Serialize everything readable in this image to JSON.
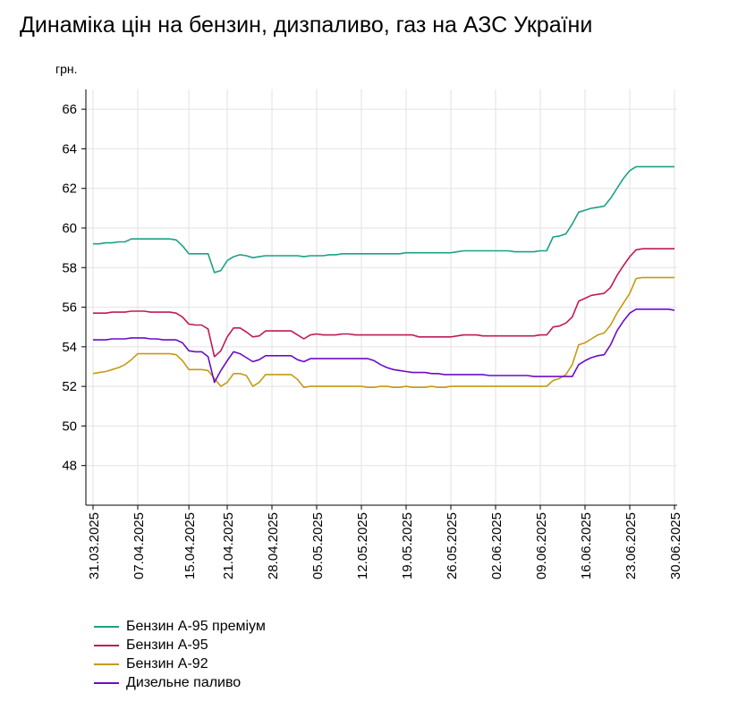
{
  "chart_data": {
    "type": "line",
    "title": "Динаміка цін на бензин, дизпаливо, газ на АЗС України",
    "ylabel": "грн.",
    "ylim": [
      46,
      67
    ],
    "yticks": [
      48,
      50,
      52,
      54,
      56,
      58,
      60,
      62,
      64,
      66
    ],
    "grid": true,
    "legend_position": "bottom-left",
    "x_tick_labels": [
      "31.03.2025",
      "07.04.2025",
      "15.04.2025",
      "21.04.2025",
      "28.04.2025",
      "05.05.2025",
      "12.05.2025",
      "19.05.2025",
      "26.05.2025",
      "02.06.2025",
      "09.06.2025",
      "16.06.2025",
      "23.06.2025",
      "30.06.2025"
    ],
    "x": [
      "31.03",
      "01.04",
      "02.04",
      "03.04",
      "04.04",
      "05.04",
      "06.04",
      "07.04",
      "08.04",
      "09.04",
      "10.04",
      "11.04",
      "12.04",
      "13.04",
      "14.04",
      "15.04",
      "16.04",
      "17.04",
      "18.04",
      "19.04",
      "20.04",
      "21.04",
      "22.04",
      "23.04",
      "24.04",
      "25.04",
      "26.04",
      "27.04",
      "28.04",
      "29.04",
      "30.04",
      "01.05",
      "02.05",
      "03.05",
      "04.05",
      "05.05",
      "06.05",
      "07.05",
      "08.05",
      "09.05",
      "10.05",
      "11.05",
      "12.05",
      "13.05",
      "14.05",
      "15.05",
      "16.05",
      "17.05",
      "18.05",
      "19.05",
      "20.05",
      "21.05",
      "22.05",
      "23.05",
      "24.05",
      "25.05",
      "26.05",
      "27.05",
      "28.05",
      "29.05",
      "30.05",
      "31.05",
      "01.06",
      "02.06",
      "03.06",
      "04.06",
      "05.06",
      "06.06",
      "07.06",
      "08.06",
      "09.06",
      "10.06",
      "11.06",
      "12.06",
      "13.06",
      "14.06",
      "15.06",
      "16.06",
      "17.06",
      "18.06",
      "19.06",
      "20.06",
      "21.06",
      "22.06",
      "23.06",
      "24.06",
      "25.06",
      "26.06",
      "27.06",
      "28.06",
      "29.06",
      "30.06"
    ],
    "series": [
      {
        "name": "Бензин А-95 преміум",
        "color": "#1aa187",
        "values": [
          59.2,
          59.2,
          59.25,
          59.25,
          59.3,
          59.3,
          59.45,
          59.45,
          59.45,
          59.45,
          59.45,
          59.45,
          59.45,
          59.4,
          59.1,
          58.7,
          58.7,
          58.7,
          58.7,
          57.75,
          57.85,
          58.35,
          58.55,
          58.65,
          58.6,
          58.5,
          58.55,
          58.6,
          58.6,
          58.6,
          58.6,
          58.6,
          58.6,
          58.55,
          58.6,
          58.6,
          58.6,
          58.65,
          58.65,
          58.7,
          58.7,
          58.7,
          58.7,
          58.7,
          58.7,
          58.7,
          58.7,
          58.7,
          58.7,
          58.75,
          58.75,
          58.75,
          58.75,
          58.75,
          58.75,
          58.75,
          58.75,
          58.8,
          58.85,
          58.85,
          58.85,
          58.85,
          58.85,
          58.85,
          58.85,
          58.85,
          58.8,
          58.8,
          58.8,
          58.8,
          58.85,
          58.85,
          59.55,
          59.6,
          59.7,
          60.2,
          60.8,
          60.9,
          61.0,
          61.05,
          61.1,
          61.5,
          62.0,
          62.5,
          62.9,
          63.1,
          63.1,
          63.1,
          63.1,
          63.1,
          63.1,
          63.1
        ]
      },
      {
        "name": "Бензин А-95",
        "color": "#c0195a",
        "values": [
          55.7,
          55.7,
          55.7,
          55.75,
          55.75,
          55.75,
          55.8,
          55.8,
          55.8,
          55.75,
          55.75,
          55.75,
          55.75,
          55.7,
          55.5,
          55.15,
          55.1,
          55.1,
          54.9,
          53.5,
          53.8,
          54.5,
          54.95,
          54.95,
          54.75,
          54.5,
          54.55,
          54.8,
          54.8,
          54.8,
          54.8,
          54.8,
          54.6,
          54.4,
          54.6,
          54.65,
          54.6,
          54.6,
          54.6,
          54.65,
          54.65,
          54.6,
          54.6,
          54.6,
          54.6,
          54.6,
          54.6,
          54.6,
          54.6,
          54.6,
          54.6,
          54.5,
          54.5,
          54.5,
          54.5,
          54.5,
          54.5,
          54.55,
          54.6,
          54.6,
          54.6,
          54.55,
          54.55,
          54.55,
          54.55,
          54.55,
          54.55,
          54.55,
          54.55,
          54.55,
          54.6,
          54.6,
          55.0,
          55.05,
          55.2,
          55.5,
          56.3,
          56.45,
          56.6,
          56.65,
          56.7,
          57.0,
          57.6,
          58.1,
          58.55,
          58.9,
          58.95,
          58.95,
          58.95,
          58.95,
          58.95,
          58.95
        ]
      },
      {
        "name": "Бензин А-92",
        "color": "#c49b12",
        "values": [
          52.65,
          52.7,
          52.75,
          52.85,
          52.95,
          53.1,
          53.35,
          53.65,
          53.65,
          53.65,
          53.65,
          53.65,
          53.65,
          53.6,
          53.3,
          52.85,
          52.85,
          52.85,
          52.8,
          52.4,
          52.0,
          52.2,
          52.65,
          52.65,
          52.55,
          52.0,
          52.2,
          52.6,
          52.6,
          52.6,
          52.6,
          52.6,
          52.35,
          51.95,
          52.0,
          52.0,
          52.0,
          52.0,
          52.0,
          52.0,
          52.0,
          52.0,
          52.0,
          51.95,
          51.95,
          52.0,
          52.0,
          51.95,
          51.95,
          52.0,
          51.95,
          51.95,
          51.95,
          52.0,
          51.95,
          51.95,
          52.0,
          52.0,
          52.0,
          52.0,
          52.0,
          52.0,
          52.0,
          52.0,
          52.0,
          52.0,
          52.0,
          52.0,
          52.0,
          52.0,
          52.0,
          52.0,
          52.3,
          52.4,
          52.6,
          53.1,
          54.1,
          54.2,
          54.4,
          54.6,
          54.7,
          55.1,
          55.7,
          56.2,
          56.7,
          57.45,
          57.5,
          57.5,
          57.5,
          57.5,
          57.5,
          57.5
        ]
      },
      {
        "name": "Дизельне паливо",
        "color": "#6a0dc8",
        "values": [
          54.35,
          54.35,
          54.35,
          54.4,
          54.4,
          54.4,
          54.45,
          54.45,
          54.45,
          54.4,
          54.4,
          54.35,
          54.35,
          54.35,
          54.2,
          53.8,
          53.75,
          53.75,
          53.5,
          52.2,
          52.8,
          53.3,
          53.75,
          53.65,
          53.45,
          53.25,
          53.35,
          53.55,
          53.55,
          53.55,
          53.55,
          53.55,
          53.35,
          53.25,
          53.4,
          53.4,
          53.4,
          53.4,
          53.4,
          53.4,
          53.4,
          53.4,
          53.4,
          53.4,
          53.3,
          53.1,
          52.95,
          52.85,
          52.8,
          52.75,
          52.7,
          52.7,
          52.7,
          52.65,
          52.65,
          52.6,
          52.6,
          52.6,
          52.6,
          52.6,
          52.6,
          52.6,
          52.55,
          52.55,
          52.55,
          52.55,
          52.55,
          52.55,
          52.55,
          52.5,
          52.5,
          52.5,
          52.5,
          52.5,
          52.5,
          52.5,
          53.1,
          53.3,
          53.45,
          53.55,
          53.6,
          54.1,
          54.8,
          55.3,
          55.7,
          55.9,
          55.9,
          55.9,
          55.9,
          55.9,
          55.9,
          55.85
        ]
      }
    ]
  }
}
